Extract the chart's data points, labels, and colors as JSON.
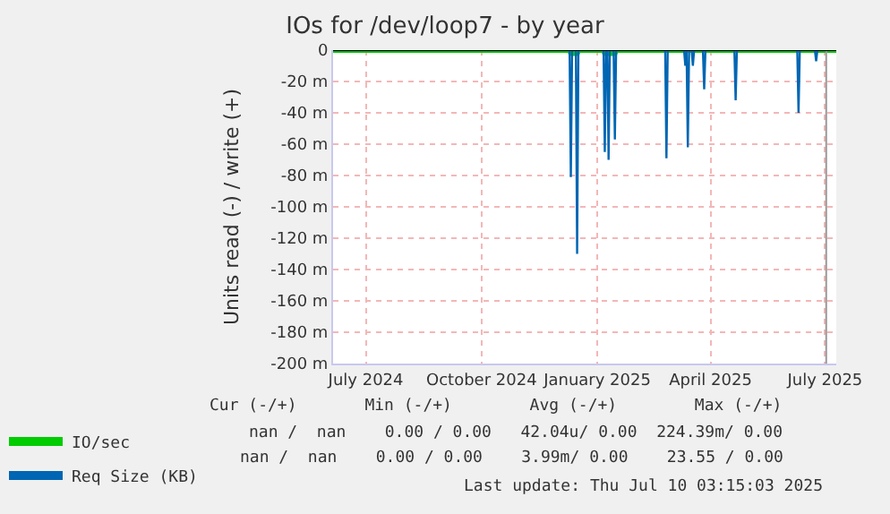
{
  "chart_data": {
    "type": "line",
    "title": "IOs for /dev/loop7 - by year",
    "ylabel": "Units read (-) / write (+)",
    "xlim": [
      "2024-06-05",
      "2025-07-10"
    ],
    "xticks": [
      {
        "value": "2024-07-01",
        "label": "July 2024"
      },
      {
        "value": "2024-10-01",
        "label": "October 2024"
      },
      {
        "value": "2025-01-01",
        "label": "January 2025"
      },
      {
        "value": "2025-04-01",
        "label": "April 2025"
      },
      {
        "value": "2025-07-01",
        "label": "July 2025"
      }
    ],
    "ylim": [
      -200,
      0
    ],
    "yticks": [
      {
        "value": 0,
        "label": "0"
      },
      {
        "value": -20,
        "label": "-20 m"
      },
      {
        "value": -40,
        "label": "-40 m"
      },
      {
        "value": -60,
        "label": "-60 m"
      },
      {
        "value": -80,
        "label": "-80 m"
      },
      {
        "value": -100,
        "label": "-100 m"
      },
      {
        "value": -120,
        "label": "-120 m"
      },
      {
        "value": -140,
        "label": "-140 m"
      },
      {
        "value": -160,
        "label": "-160 m"
      },
      {
        "value": -180,
        "label": "-180 m"
      },
      {
        "value": -200,
        "label": "-200 m"
      }
    ],
    "grid": true,
    "legend": "bottom left",
    "marker": "none",
    "line_style": "solid",
    "series": [
      {
        "name": "IO/sec",
        "color": "#00cc00",
        "x": [
          "2024-06-05",
          "2024-12-10",
          "2024-12-11",
          "2024-12-16",
          "2024-12-17",
          "2025-01-06",
          "2025-01-07",
          "2025-01-10",
          "2025-01-15",
          "2025-01-16",
          "2025-07-10"
        ],
        "values": [
          0,
          0,
          -2,
          -2,
          0,
          0,
          -2,
          -2,
          -2,
          0,
          0
        ]
      },
      {
        "name": "Req Size (KB)",
        "color": "#0066b3",
        "x": [
          "2024-06-05",
          "2024-12-10",
          "2024-12-11",
          "2024-12-12",
          "2024-12-15",
          "2024-12-16",
          "2024-12-17",
          "2025-01-06",
          "2025-01-07",
          "2025-01-08",
          "2025-01-09",
          "2025-01-10",
          "2025-01-11",
          "2025-01-14",
          "2025-01-15",
          "2025-01-16",
          "2025-02-24",
          "2025-02-25",
          "2025-02-26",
          "2025-03-11",
          "2025-03-12",
          "2025-03-13",
          "2025-03-14",
          "2025-03-15",
          "2025-03-17",
          "2025-03-18",
          "2025-03-19",
          "2025-03-26",
          "2025-03-27",
          "2025-03-28",
          "2025-04-20",
          "2025-04-21",
          "2025-04-22",
          "2025-06-09",
          "2025-06-10",
          "2025-06-11",
          "2025-06-23",
          "2025-06-24",
          "2025-06-25",
          "2025-07-02"
        ],
        "values": [
          0,
          0,
          -81,
          0,
          0,
          -130,
          0,
          0,
          -65,
          0,
          0,
          -70,
          0,
          0,
          -57,
          0,
          0,
          -69,
          0,
          0,
          -10,
          0,
          -62,
          0,
          0,
          -10,
          0,
          0,
          -25,
          0,
          0,
          -32,
          0,
          0,
          -40,
          0,
          0,
          -7,
          0,
          0
        ]
      }
    ],
    "ref_lines": [
      {
        "axis": "x",
        "value": "2025-07-02",
        "label": null,
        "color": "#999999"
      }
    ],
    "annotations": [
      "Cur (-/+)       Min (-/+)        Avg (-/+)        Max (-/+)",
      "nan /  nan    0.00 / 0.00   42.04u/ 0.00  224.39m/ 0.00",
      "nan /  nan    0.00 / 0.00    3.99m/ 0.00    23.55 / 0.00",
      "Last update: Thu Jul 10 03:15:03 2025"
    ]
  }
}
